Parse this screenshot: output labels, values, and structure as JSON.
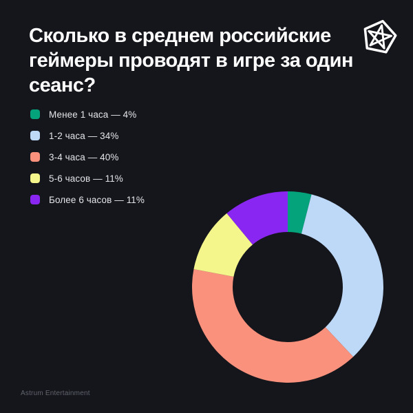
{
  "page": {
    "background_color": "#14161b",
    "footer_text": "Astrum Entertainment"
  },
  "header": {
    "title": "Сколько в среднем российские геймеры проводят в игре за один сеанс?",
    "title_lines": {
      "0": "Сколько в среднем российские",
      "1": "геймеры проводят в игре за один",
      "2": "сеанс?"
    }
  },
  "logo": {
    "name": "astrum-entertainment-logo",
    "color": "#ffffff"
  },
  "chart_data": {
    "type": "pie",
    "variant": "donut",
    "title": "Сколько в среднем российские геймеры проводят в игре за один сеанс?",
    "categories": [
      "Менее 1 часа",
      "1-2 часа",
      "3-4 часа",
      "5-6 часов",
      "Более 6 часов"
    ],
    "values": [
      4,
      34,
      40,
      11,
      11
    ],
    "unit": "%",
    "colors": [
      "#05a37c",
      "#bed9f8",
      "#f9917d",
      "#f4f68c",
      "#8a26f2"
    ],
    "legend_labels": [
      "Менее 1 часа — 4%",
      "1-2 часа — 34%",
      "3-4 часа — 40%",
      "5-6 часов — 11%",
      "Более 6 часов — 11%"
    ],
    "start_angle_deg": 0,
    "direction": "clockwise",
    "inner_radius_ratio": 0.575,
    "legend_position": "top-left",
    "background": "#14161b"
  }
}
